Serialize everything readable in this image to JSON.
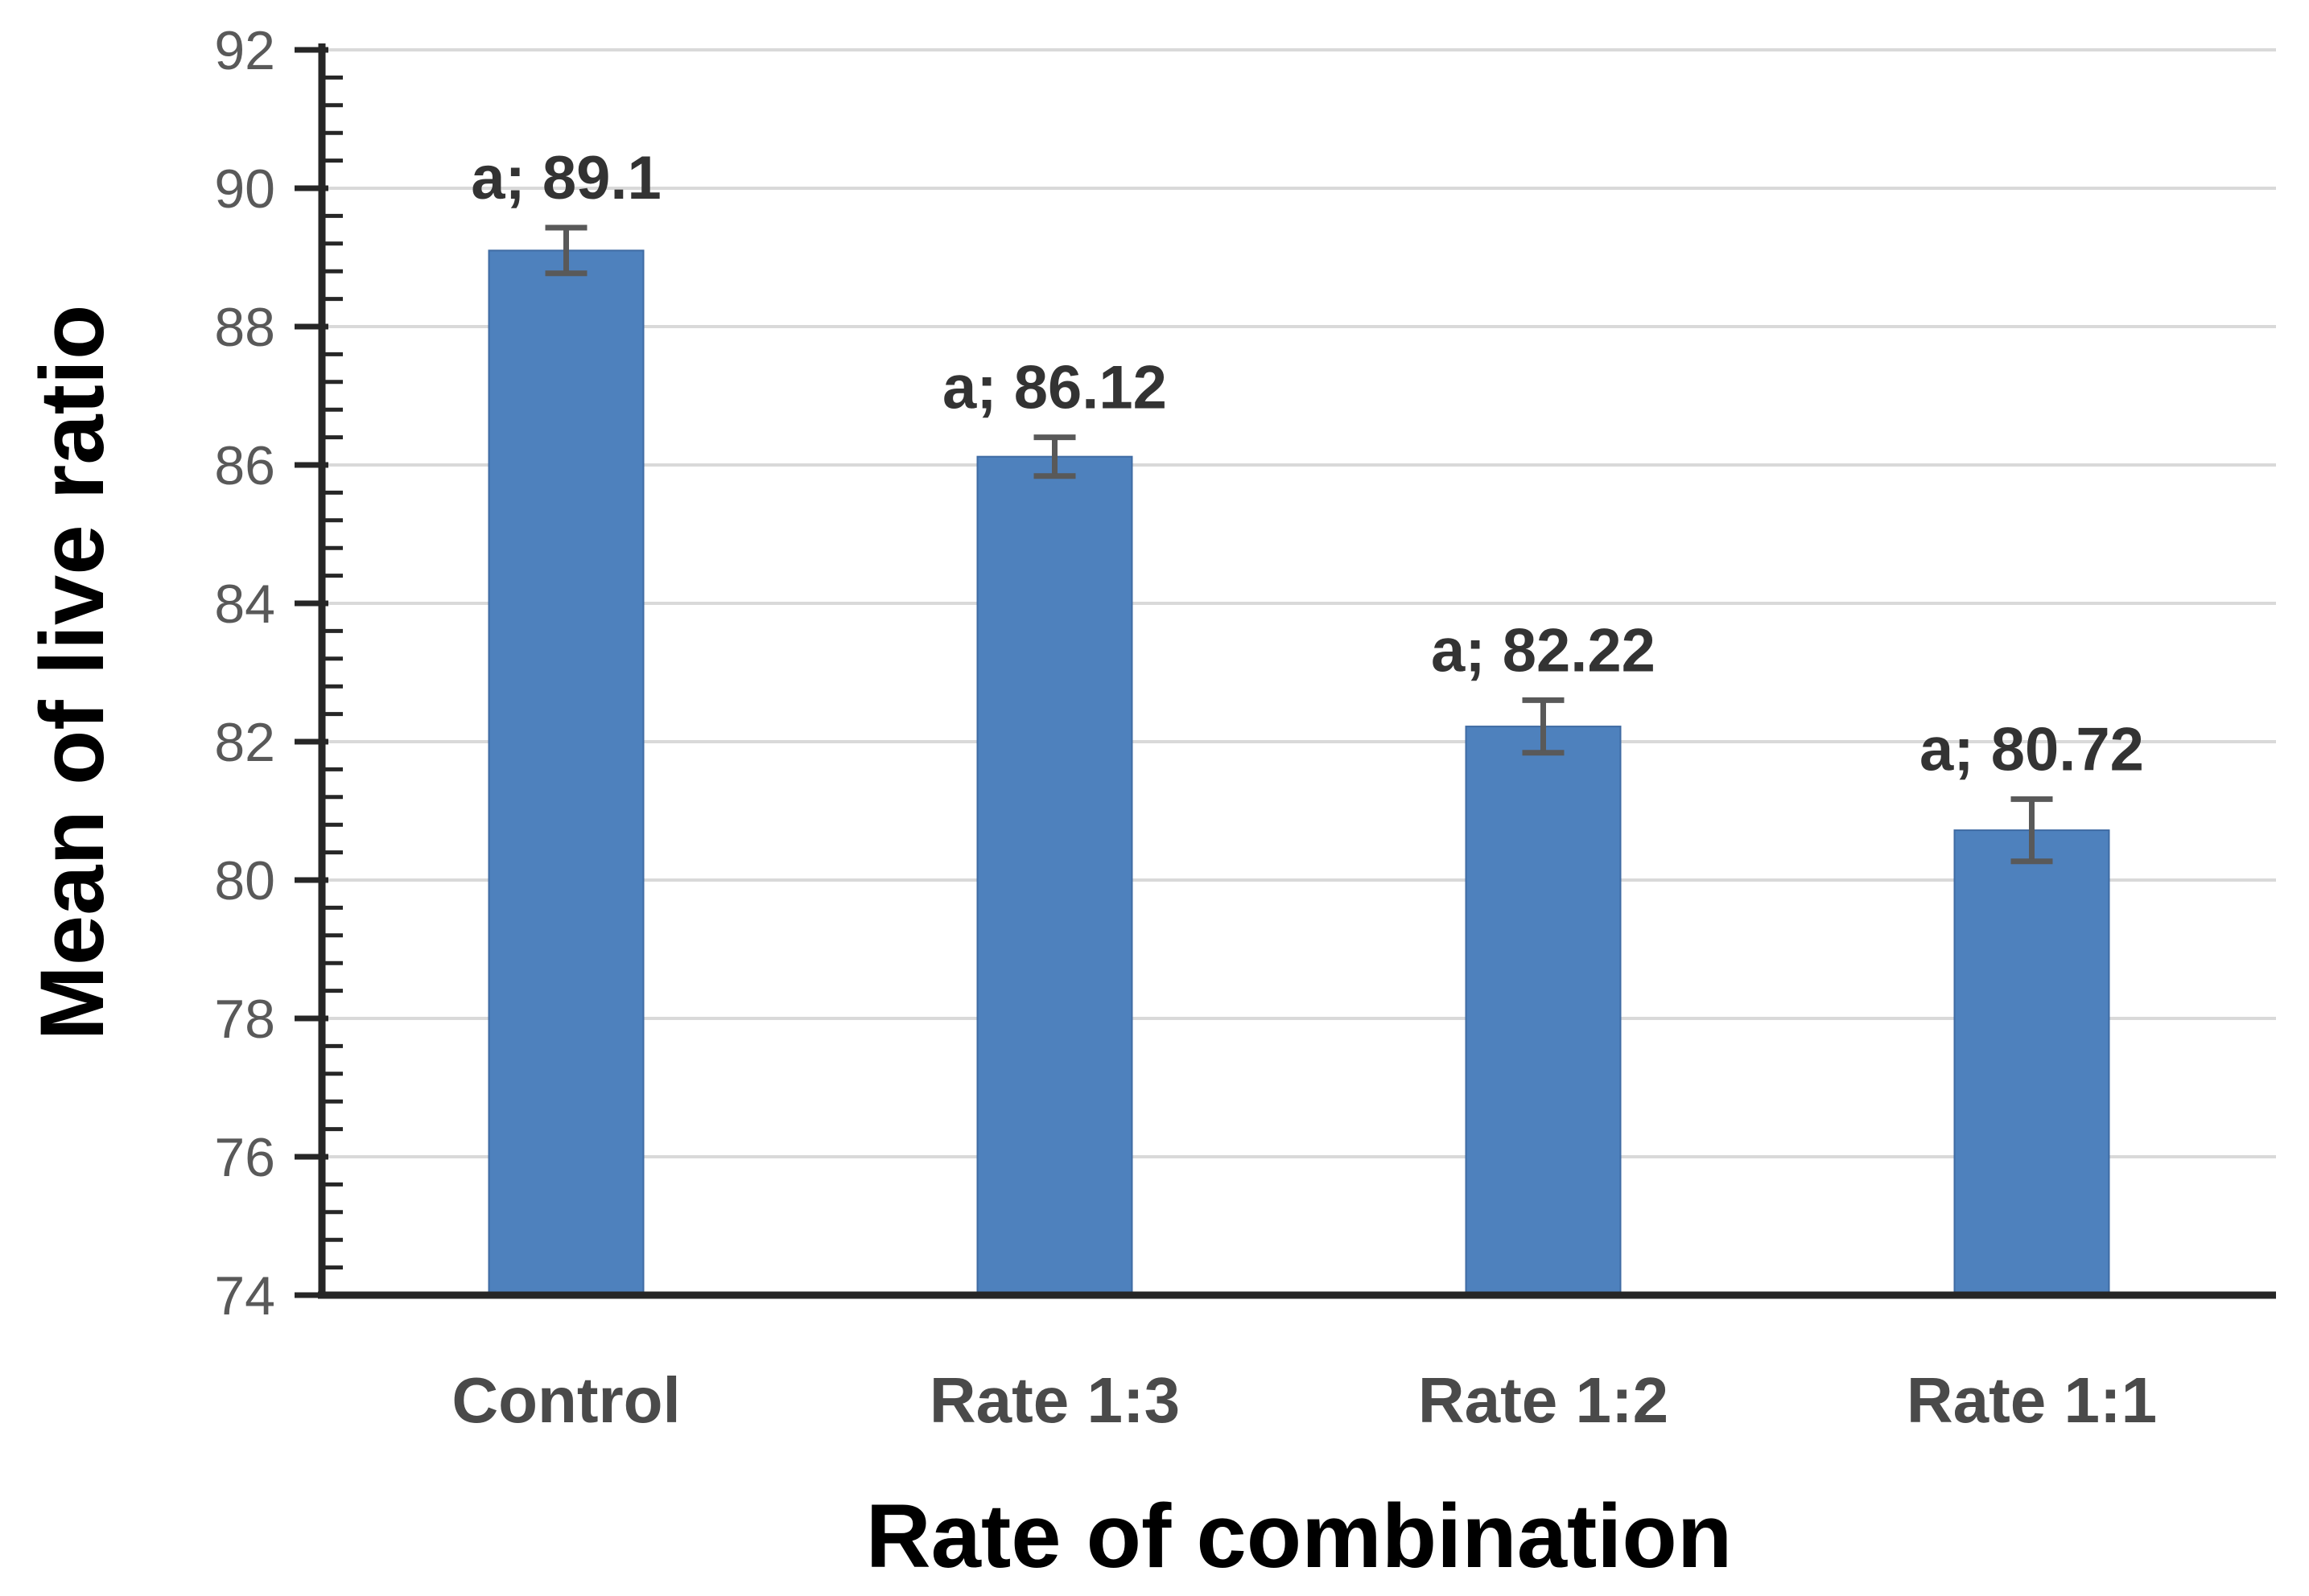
{
  "chart_data": {
    "type": "bar",
    "title": "",
    "xlabel": "Rate of combination",
    "ylabel": "Mean of live ratio",
    "categories": [
      "Control",
      "Rate 1:3",
      "Rate 1:2",
      "Rate 1:1"
    ],
    "values": [
      89.1,
      86.12,
      82.22,
      80.72
    ],
    "error_bars": [
      0.33,
      0.28,
      0.38,
      0.45
    ],
    "point_labels": [
      "a; 89.1",
      "a; 86.12",
      "a; 82.22",
      "a; 80.72"
    ],
    "ylim": [
      74,
      92
    ],
    "y_major_unit": 2,
    "y_minor_unit": 0.4,
    "y_tick_labels": [
      "74",
      "76",
      "78",
      "80",
      "82",
      "84",
      "86",
      "88",
      "90",
      "92"
    ],
    "grid": "horizontal-major",
    "legend": "none",
    "colors": {
      "bar": "#4e81bd",
      "bar_edge": "#3f6ba3",
      "gridline": "#d9d9d9",
      "axis": "#262626",
      "tick_label": "#595959",
      "category_label": "#4a4a4a",
      "data_label": "#333333",
      "error_bar": "#595959",
      "axis_title": "#000000"
    }
  }
}
